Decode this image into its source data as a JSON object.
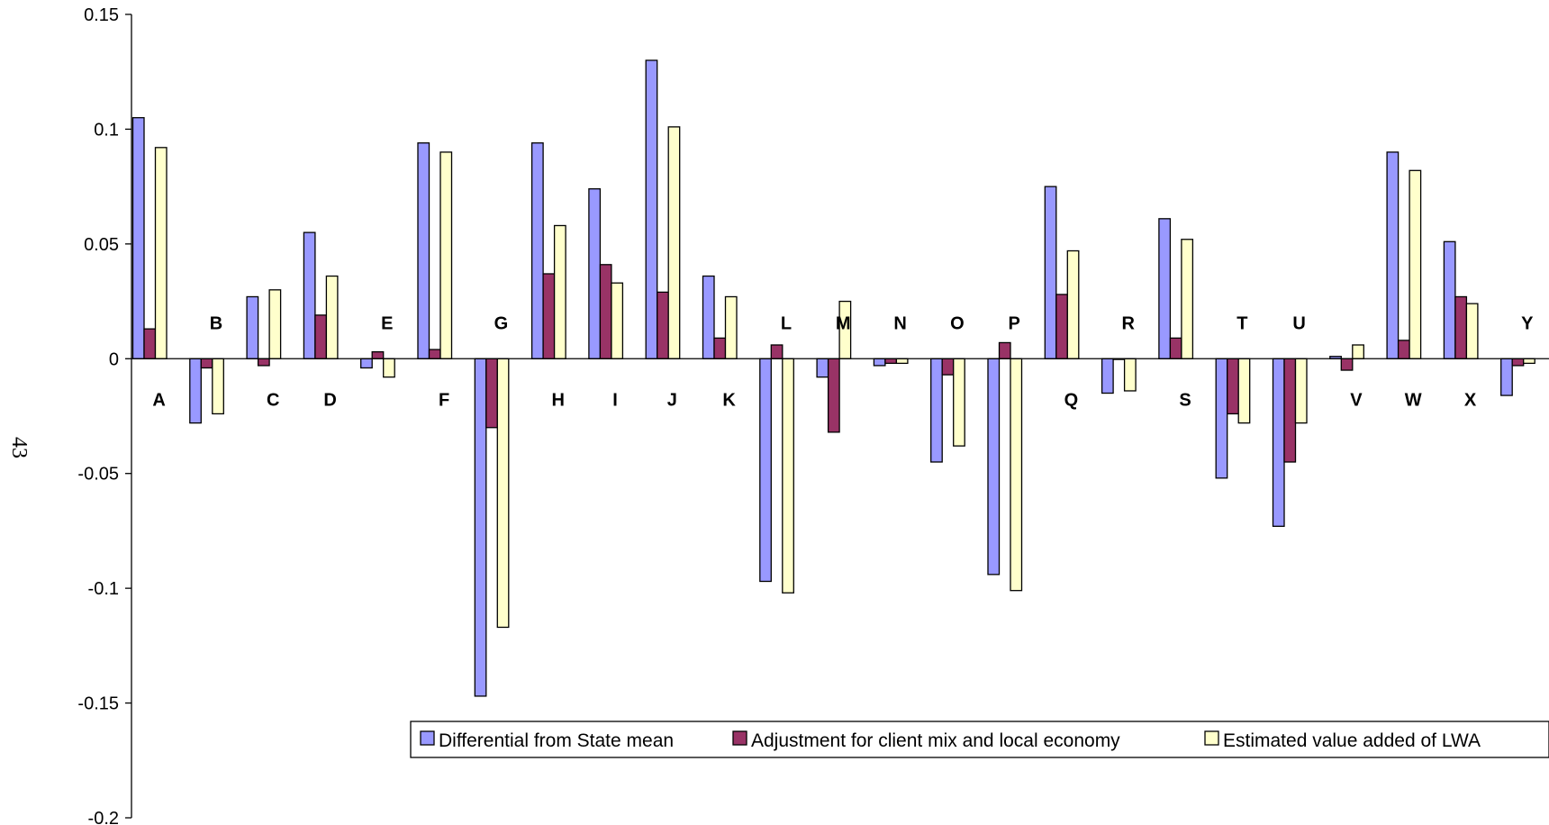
{
  "page_number": "43",
  "chart_data": {
    "type": "bar",
    "title": "",
    "xlabel": "",
    "ylabel": "",
    "ylim": [
      -0.2,
      0.15
    ],
    "yticks": [
      0.15,
      0.1,
      0.05,
      0,
      -0.05,
      -0.1,
      -0.15,
      -0.2
    ],
    "ytick_labels": [
      "0.15",
      "0.1",
      "0.05",
      "0",
      "-0.05",
      "-0.1",
      "-0.15",
      "-0.2"
    ],
    "grid": false,
    "legend_position": "bottom-right",
    "categories": [
      "A",
      "B",
      "C",
      "D",
      "E",
      "F",
      "G",
      "H",
      "I",
      "J",
      "K",
      "L",
      "M",
      "N",
      "O",
      "P",
      "Q",
      "R",
      "S",
      "T",
      "U",
      "V",
      "W",
      "X",
      "Y"
    ],
    "series": [
      {
        "name": "Differential from State mean",
        "color": "#9999ff",
        "values": [
          0.105,
          -0.028,
          0.027,
          0.055,
          -0.004,
          0.094,
          -0.147,
          0.094,
          0.074,
          0.13,
          0.036,
          -0.097,
          -0.008,
          -0.003,
          -0.045,
          -0.094,
          0.075,
          -0.015,
          0.061,
          -0.052,
          -0.073,
          0.001,
          0.09,
          0.051,
          -0.016
        ]
      },
      {
        "name": "Adjustment for client mix and local economy",
        "color": "#993366",
        "values": [
          0.013,
          -0.004,
          -0.003,
          0.019,
          0.003,
          0.004,
          -0.03,
          0.037,
          0.041,
          0.029,
          0.009,
          0.006,
          -0.032,
          -0.002,
          -0.007,
          0.007,
          0.028,
          0.0,
          0.009,
          -0.024,
          -0.045,
          -0.005,
          0.008,
          0.027,
          -0.003
        ]
      },
      {
        "name": "Estimated value added of LWA",
        "color": "#ffffcc",
        "values": [
          0.092,
          -0.024,
          0.03,
          0.036,
          -0.008,
          0.09,
          -0.117,
          0.058,
          0.033,
          0.101,
          0.027,
          -0.102,
          0.025,
          -0.002,
          -0.038,
          -0.101,
          0.047,
          -0.014,
          0.052,
          -0.028,
          -0.028,
          0.006,
          0.082,
          0.024,
          -0.002
        ]
      }
    ]
  }
}
